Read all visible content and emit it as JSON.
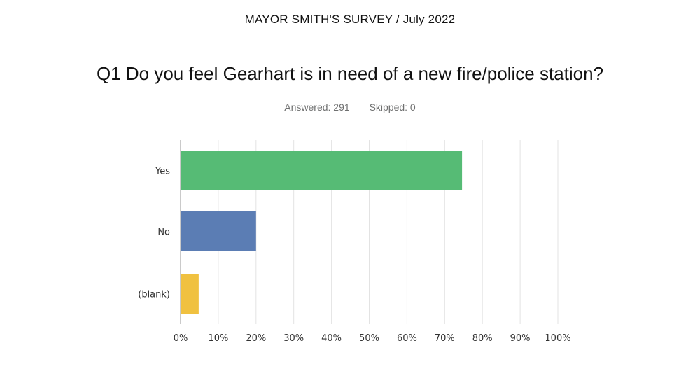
{
  "survey_title": "MAYOR SMITH'S SURVEY / July 2022",
  "question": "Q1 Do you feel Gearhart is in need of a new fire/police station?",
  "stats": {
    "answered": "Answered: 291",
    "skipped": "Skipped: 0"
  },
  "chart_data": {
    "type": "bar",
    "orientation": "horizontal",
    "categories": [
      "Yes",
      "No",
      "(blank)"
    ],
    "values": [
      74.6,
      20.0,
      4.8
    ],
    "colors": [
      "#56bb75",
      "#5b7db4",
      "#f0c140"
    ],
    "xlim": [
      0,
      100
    ],
    "xticks": [
      "0%",
      "10%",
      "20%",
      "30%",
      "40%",
      "50%",
      "60%",
      "70%",
      "80%",
      "90%",
      "100%"
    ],
    "grid": true
  }
}
